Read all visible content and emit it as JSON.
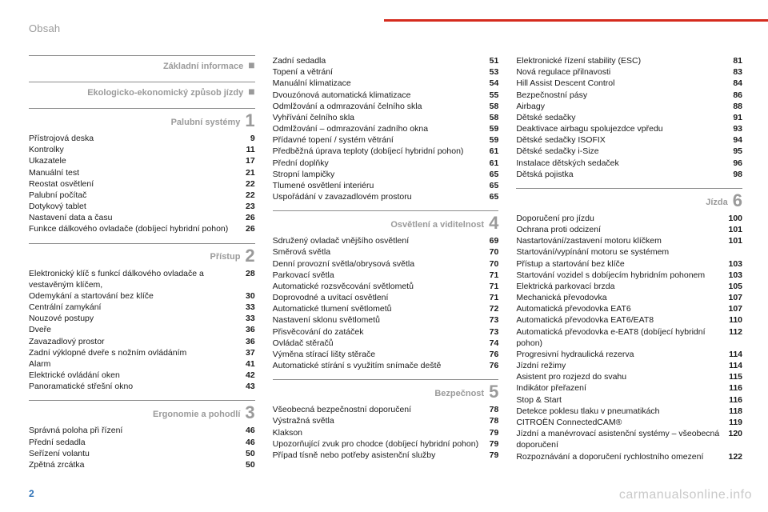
{
  "header": {
    "title": "Obsah"
  },
  "footer": {
    "page_number": "2",
    "link": "carmanualsonline.info"
  },
  "accent_color": "#d52b1e",
  "columns": [
    {
      "sections": [
        {
          "title": "Základní informace",
          "marker": "■",
          "entries": []
        },
        {
          "title": "Ekologicko-ekonomický způsob jízdy",
          "marker": "■",
          "entries": []
        },
        {
          "title": "Palubní systémy",
          "number": "1",
          "entries": [
            {
              "label": "Přístrojová deska",
              "page": "9"
            },
            {
              "label": "Kontrolky",
              "page": "11"
            },
            {
              "label": "Ukazatele",
              "page": "17"
            },
            {
              "label": "Manuální test",
              "page": "21"
            },
            {
              "label": "Reostat osvětlení",
              "page": "22"
            },
            {
              "label": "Palubní počítač",
              "page": "22"
            },
            {
              "label": "Dotykový tablet",
              "page": "23"
            },
            {
              "label": "Nastavení data a času",
              "page": "26"
            },
            {
              "label": "Funkce dálkového ovladače (dobíjecí hybridní pohon)",
              "page": "26"
            }
          ]
        },
        {
          "title": "Přístup",
          "number": "2",
          "entries": [
            {
              "label": "Elektronický klíč s funkcí dálkového ovladače a vestavěným klíčem,",
              "page": "28"
            },
            {
              "label": "Odemykání a startování bez klíče",
              "page": "30"
            },
            {
              "label": "Centrální zamykání",
              "page": "33"
            },
            {
              "label": "Nouzové postupy",
              "page": "33"
            },
            {
              "label": "Dveře",
              "page": "36"
            },
            {
              "label": "Zavazadlový prostor",
              "page": "36"
            },
            {
              "label": "Zadní výklopné dveře s nožním ovládáním",
              "page": "37"
            },
            {
              "label": "Alarm",
              "page": "41"
            },
            {
              "label": "Elektrické ovládání oken",
              "page": "42"
            },
            {
              "label": "Panoramatické střešní okno",
              "page": "43"
            }
          ]
        },
        {
          "title": "Ergonomie a pohodlí",
          "number": "3",
          "entries": [
            {
              "label": "Správná poloha při řízení",
              "page": "46"
            },
            {
              "label": "Přední sedadla",
              "page": "46"
            },
            {
              "label": "Seřízení volantu",
              "page": "50"
            },
            {
              "label": "Zpětná zrcátka",
              "page": "50"
            }
          ]
        }
      ]
    },
    {
      "sections": [
        {
          "continuation": true,
          "entries": [
            {
              "label": "Zadní sedadla",
              "page": "51"
            },
            {
              "label": "Topení a větrání",
              "page": "53"
            },
            {
              "label": "Manuální klimatizace",
              "page": "54"
            },
            {
              "label": "Dvouzónová automatická klimatizace",
              "page": "55"
            },
            {
              "label": "Odmlžování a odmrazování čelního skla",
              "page": "58"
            },
            {
              "label": "Vyhřívání čelního skla",
              "page": "58"
            },
            {
              "label": "Odmlžování – odmrazování zadního okna",
              "page": "59"
            },
            {
              "label": "Přídavné topení / systém větrání",
              "page": "59"
            },
            {
              "label": "Předběžná úprava teploty (dobíjecí hybridní pohon)",
              "page": "61"
            },
            {
              "label": "Přední doplňky",
              "page": "61"
            },
            {
              "label": "Stropní lampičky",
              "page": "65"
            },
            {
              "label": "Tlumené osvětlení interiéru",
              "page": "65"
            },
            {
              "label": "Uspořádání v zavazadlovém prostoru",
              "page": "65"
            }
          ]
        },
        {
          "title": "Osvětlení a viditelnost",
          "number": "4",
          "entries": [
            {
              "label": "Sdružený ovladač vnějšího osvětlení",
              "page": "69"
            },
            {
              "label": "Směrová světla",
              "page": "70"
            },
            {
              "label": "Denní provozní světla/obrysová světla",
              "page": "70"
            },
            {
              "label": "Parkovací světla",
              "page": "71"
            },
            {
              "label": "Automatické rozsvěcování světlometů",
              "page": "71"
            },
            {
              "label": "Doprovodné a uvítací osvětlení",
              "page": "71"
            },
            {
              "label": "Automatické tlumení světlometů",
              "page": "72"
            },
            {
              "label": "Nastavení sklonu světlometů",
              "page": "73"
            },
            {
              "label": "Přisvěcování do zatáček",
              "page": "73"
            },
            {
              "label": "Ovládač stěračů",
              "page": "74"
            },
            {
              "label": "Výměna stírací lišty stěrače",
              "page": "76"
            },
            {
              "label": "Automatické stírání s využitím snímače deště",
              "page": "76"
            }
          ]
        },
        {
          "title": "Bezpečnost",
          "number": "5",
          "entries": [
            {
              "label": "Všeobecná bezpečnostní doporučení",
              "page": "78"
            },
            {
              "label": "Výstražná světla",
              "page": "78"
            },
            {
              "label": "Klakson",
              "page": "79"
            },
            {
              "label": "Upozorňující zvuk pro chodce (dobíjecí hybridní pohon)",
              "page": "79"
            },
            {
              "label": "Případ tísně nebo potřeby asistenční služby",
              "page": "79"
            }
          ]
        }
      ]
    },
    {
      "sections": [
        {
          "continuation": true,
          "entries": [
            {
              "label": "Elektronické řízení stability (ESC)",
              "page": "81"
            },
            {
              "label": "Nová regulace přilnavosti",
              "page": "83"
            },
            {
              "label": "Hill Assist Descent Control",
              "page": "84"
            },
            {
              "label": "Bezpečnostní pásy",
              "page": "86"
            },
            {
              "label": "Airbagy",
              "page": "88"
            },
            {
              "label": "Dětské sedačky",
              "page": "91"
            },
            {
              "label": "Deaktivace airbagu spolujezdce vpředu",
              "page": "93"
            },
            {
              "label": "Dětské sedačky ISOFIX",
              "page": "94"
            },
            {
              "label": "Dětské sedačky i-Size",
              "page": "95"
            },
            {
              "label": "Instalace dětských sedaček",
              "page": "96"
            },
            {
              "label": "Dětská pojistka",
              "page": "98"
            }
          ]
        },
        {
          "title": "Jízda",
          "number": "6",
          "entries": [
            {
              "label": "Doporučení pro jízdu",
              "page": "100"
            },
            {
              "label": "Ochrana proti odcizení",
              "page": "101"
            },
            {
              "label": "Nastartování/zastavení motoru klíčkem",
              "page": "101"
            },
            {
              "label": "Startování/vypínání motoru se systémem",
              "page": ""
            },
            {
              "label": "Přístup a startování bez klíče",
              "page": "103"
            },
            {
              "label": "Startování vozidel s dobíjecím hybridním pohonem",
              "page": "103"
            },
            {
              "label": "Elektrická parkovací brzda",
              "page": "105"
            },
            {
              "label": "Mechanická převodovka",
              "page": "107"
            },
            {
              "label": "Automatická převodovka EAT6",
              "page": "107"
            },
            {
              "label": "Automatická převodovka EAT6/EAT8",
              "page": "110"
            },
            {
              "label": "Automatická převodovka e-EAT8 (dobíjecí hybridní pohon)",
              "page": "112"
            },
            {
              "label": "Progresivní hydraulická rezerva",
              "page": "114"
            },
            {
              "label": "Jízdní režimy",
              "page": "114"
            },
            {
              "label": "Asistent pro rozjezd do svahu",
              "page": "115"
            },
            {
              "label": "Indikátor přeřazení",
              "page": "116"
            },
            {
              "label": "Stop & Start",
              "page": "116"
            },
            {
              "label": "Detekce poklesu tlaku v pneumatikách",
              "page": "118"
            },
            {
              "label": "CITROËN ConnectedCAM®",
              "page": "119"
            },
            {
              "label": "Jízdní a manévrovací asistenční systémy – všeobecná doporučení",
              "page": "120"
            },
            {
              "label": "Rozpoznávání a doporučení rychlostního omezení",
              "page": "122"
            }
          ]
        }
      ]
    }
  ]
}
